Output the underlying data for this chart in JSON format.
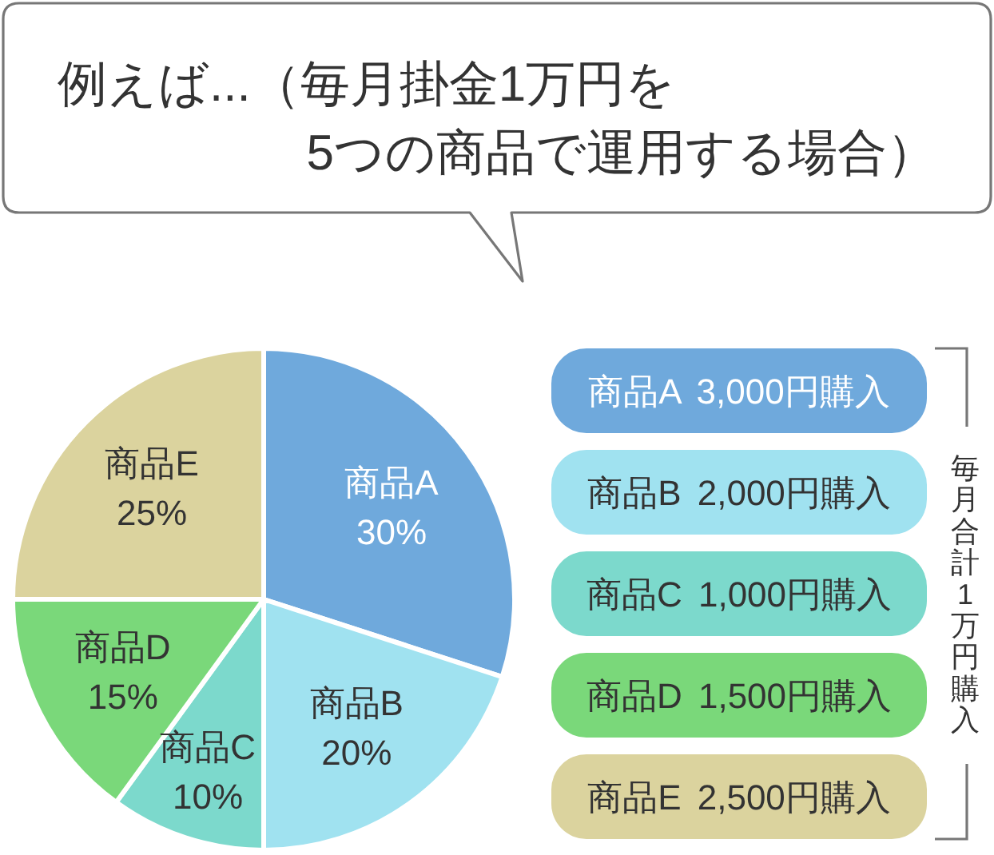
{
  "chart_data": {
    "type": "pie",
    "title": "例えば...（毎月掛金1万円を\n5つの商品で運用する場合）",
    "categories": [
      "商品A",
      "商品B",
      "商品C",
      "商品D",
      "商品E"
    ],
    "values": [
      30,
      20,
      10,
      15,
      25
    ],
    "colors": [
      "#6fa9dc",
      "#a0e2f0",
      "#7cd9cc",
      "#7ad87a",
      "#dbd39e"
    ],
    "value_labels": [
      "30%",
      "20%",
      "10%",
      "15%",
      "25%"
    ],
    "annotations": [
      "商品A 3,000円購入",
      "商品B 2,000円購入",
      "商品C 1,000円購入",
      "商品D 1,500円購入",
      "商品E 2,500円購入",
      "毎月合計1万円購入"
    ]
  }
}
